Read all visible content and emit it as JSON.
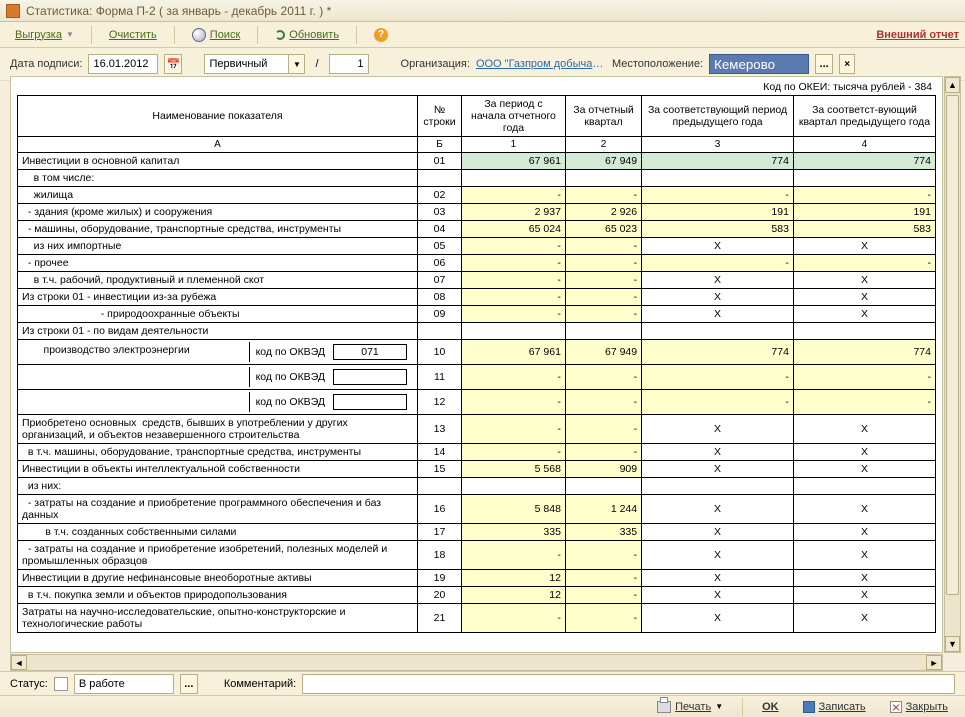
{
  "window": {
    "title": "Статистика: Форма П-2 ( за январь - декабрь 2011 г. ) *"
  },
  "toolbar": {
    "export": "Выгрузка",
    "clear": "Очистить",
    "search": "Поиск",
    "refresh": "Обновить",
    "external": "Внешний отчет"
  },
  "form": {
    "date_label": "Дата подписи:",
    "date": "16.01.2012",
    "primary": "Первичный",
    "num": "1",
    "org_label": "Организация:",
    "org_value": "ООО \"Газпром добыча Кузн...",
    "loc_label": "Местоположение:",
    "loc_value": "Кемерово"
  },
  "okei": "Код по ОКЕИ: тысяча рублей - 384",
  "head": {
    "c0": "Наименование показателя",
    "c1": "№ строки",
    "c2": "За период с начала отчетного года",
    "c3": "За отчетный квартал",
    "c4": "За соответствующий период предыдущего года",
    "c5": "За соответст-вующий квартал предыдущего года",
    "s0": "А",
    "s1": "Б",
    "s2": "1",
    "s3": "2",
    "s4": "3",
    "s5": "4"
  },
  "okved_label": "код по ОКВЭД",
  "okved_code": "071",
  "rows": [
    {
      "n": "Инвестиции в основной капитал",
      "no": "01",
      "v": [
        "67 961",
        "67 949",
        "774",
        "774"
      ],
      "cls": [
        "grn",
        "grn",
        "grn",
        "grn"
      ]
    },
    {
      "n": "    в том числе:",
      "no": "",
      "v": [
        "",
        "",
        "",
        ""
      ],
      "cls": [
        "",
        "",
        "",
        ""
      ]
    },
    {
      "n": "    жилища",
      "no": "02",
      "v": [
        "-",
        "-",
        "-",
        "-"
      ],
      "cls": [
        "yel",
        "yel",
        "yel",
        "yel"
      ]
    },
    {
      "n": "  - здания (кроме жилых) и сооружения",
      "no": "03",
      "v": [
        "2 937",
        "2 926",
        "191",
        "191"
      ],
      "cls": [
        "yel",
        "yel",
        "yel",
        "yel"
      ]
    },
    {
      "n": "  - машины, оборудование, транспортные средства, инструменты",
      "no": "04",
      "v": [
        "65 024",
        "65 023",
        "583",
        "583"
      ],
      "cls": [
        "yel",
        "yel",
        "yel",
        "yel"
      ]
    },
    {
      "n": "    из них импортные",
      "no": "05",
      "v": [
        "-",
        "-",
        "Х",
        "Х"
      ],
      "cls": [
        "yel",
        "yel",
        "",
        ""
      ]
    },
    {
      "n": "  - прочее",
      "no": "06",
      "v": [
        "-",
        "-",
        "-",
        "-"
      ],
      "cls": [
        "yel",
        "yel",
        "yel",
        "yel"
      ]
    },
    {
      "n": "    в т.ч. рабочий, продуктивный и племенной скот",
      "no": "07",
      "v": [
        "-",
        "-",
        "Х",
        "Х"
      ],
      "cls": [
        "yel",
        "yel",
        "",
        ""
      ]
    },
    {
      "n": "Из строки 01 - инвестиции из-за рубежа",
      "no": "08",
      "v": [
        "-",
        "-",
        "Х",
        "Х"
      ],
      "cls": [
        "yel",
        "yel",
        "",
        ""
      ]
    },
    {
      "n": "                           - природоохранные объекты",
      "no": "09",
      "v": [
        "-",
        "-",
        "Х",
        "Х"
      ],
      "cls": [
        "yel",
        "yel",
        "",
        ""
      ]
    },
    {
      "n": "Из строки 01 - по видам деятельности",
      "no": "",
      "v": [
        "",
        "",
        "",
        ""
      ],
      "cls": [
        "",
        "",
        "",
        ""
      ]
    },
    {
      "okved": true,
      "l": "      производство электроэнергии",
      "no": "10",
      "v": [
        "67 961",
        "67 949",
        "774",
        "774"
      ],
      "cls": [
        "yel",
        "yel",
        "yel",
        "yel"
      ]
    },
    {
      "okved": true,
      "l": "",
      "no": "11",
      "v": [
        "-",
        "-",
        "-",
        "-"
      ],
      "cls": [
        "yel",
        "yel",
        "yel",
        "yel"
      ]
    },
    {
      "okved": true,
      "l": "",
      "no": "12",
      "v": [
        "-",
        "-",
        "-",
        "-"
      ],
      "cls": [
        "yel",
        "yel",
        "yel",
        "yel"
      ]
    },
    {
      "n": "Приобретено основных  средств, бывших в употреблении у других организаций, и объектов незавершенного строительства",
      "no": "13",
      "v": [
        "-",
        "-",
        "Х",
        "Х"
      ],
      "cls": [
        "yel",
        "yel",
        "",
        ""
      ]
    },
    {
      "n": "  в т.ч. машины, оборудование, транспортные средства, инструменты",
      "no": "14",
      "v": [
        "-",
        "-",
        "Х",
        "Х"
      ],
      "cls": [
        "yel",
        "yel",
        "",
        ""
      ]
    },
    {
      "n": "Инвестиции в объекты интеллектуальной собственности",
      "no": "15",
      "v": [
        "5 568",
        "909",
        "Х",
        "Х"
      ],
      "cls": [
        "yel",
        "yel",
        "",
        ""
      ]
    },
    {
      "n": "  из них:",
      "no": "",
      "v": [
        "",
        "",
        "",
        ""
      ],
      "cls": [
        "",
        "",
        "",
        ""
      ]
    },
    {
      "n": "  - затраты на создание и приобретение программного обеспечения и баз данных",
      "no": "16",
      "v": [
        "5 848",
        "1 244",
        "Х",
        "Х"
      ],
      "cls": [
        "yel",
        "yel",
        "",
        ""
      ]
    },
    {
      "n": "        в т.ч. созданных собственными силами",
      "no": "17",
      "v": [
        "335",
        "335",
        "Х",
        "Х"
      ],
      "cls": [
        "yel",
        "yel",
        "",
        ""
      ]
    },
    {
      "n": "  - затраты на создание и приобретение изобретений, полезных моделей и промышленных образцов",
      "no": "18",
      "v": [
        "-",
        "-",
        "Х",
        "Х"
      ],
      "cls": [
        "yel",
        "yel",
        "",
        ""
      ]
    },
    {
      "n": "Инвестиции в другие нефинансовые внеоборотные активы",
      "no": "19",
      "v": [
        "12",
        "-",
        "Х",
        "Х"
      ],
      "cls": [
        "yel",
        "yel",
        "",
        ""
      ]
    },
    {
      "n": "  в т.ч. покупка земли и объектов природопользования",
      "no": "20",
      "v": [
        "12",
        "-",
        "Х",
        "Х"
      ],
      "cls": [
        "yel",
        "yel",
        "",
        ""
      ]
    },
    {
      "n": "Затраты на научно-исследовательские, опытно-конструкторские и технологические работы",
      "no": "21",
      "v": [
        "-",
        "-",
        "Х",
        "Х"
      ],
      "cls": [
        "yel",
        "yel",
        "",
        ""
      ]
    }
  ],
  "status": {
    "label": "Статус:",
    "value": "В работе",
    "comment_label": "Комментарий:"
  },
  "footer": {
    "print": "Печать",
    "ok": "OK",
    "save": "Записать",
    "close": "Закрыть"
  }
}
